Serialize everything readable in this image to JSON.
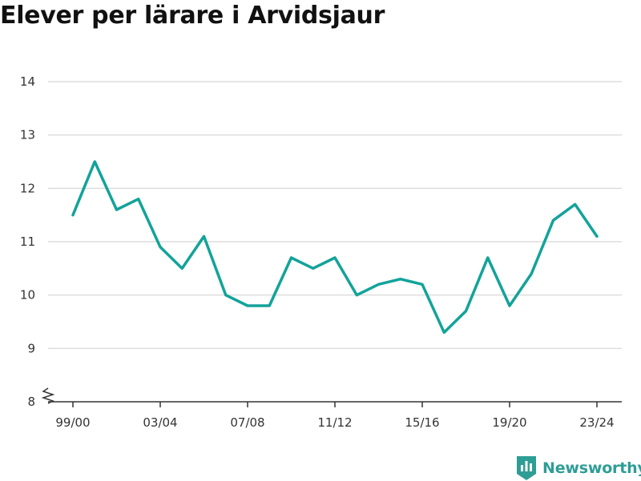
{
  "chart_data": {
    "type": "line",
    "title": "Elever per lärare i Arvidsjaur",
    "xlabel": "",
    "ylabel": "",
    "ylim": [
      8,
      14
    ],
    "yticks": [
      8,
      9,
      10,
      11,
      12,
      13,
      14
    ],
    "y_axis_break": true,
    "grid": true,
    "x_tick_labels": [
      "99/00",
      "03/04",
      "07/08",
      "11/12",
      "15/16",
      "19/20",
      "23/24"
    ],
    "categories": [
      "99/00",
      "00/01",
      "01/02",
      "02/03",
      "03/04",
      "04/05",
      "05/06",
      "06/07",
      "07/08",
      "08/09",
      "09/10",
      "10/11",
      "11/12",
      "12/13",
      "13/14",
      "14/15",
      "15/16",
      "16/17",
      "17/18",
      "18/19",
      "19/20",
      "20/21",
      "21/22",
      "22/23",
      "23/24"
    ],
    "series": [
      {
        "values": [
          11.5,
          12.5,
          11.6,
          11.8,
          10.9,
          10.5,
          11.1,
          10.0,
          9.8,
          9.8,
          10.7,
          10.5,
          10.7,
          10.0,
          10.2,
          10.3,
          10.2,
          9.3,
          9.7,
          10.7,
          9.8,
          10.4,
          11.4,
          11.7,
          11.1
        ],
        "color": "#12a39a"
      }
    ]
  },
  "brand": {
    "name": "Newsworthy",
    "color": "#2e9d96",
    "icon": "newsworthy-logo-icon"
  }
}
